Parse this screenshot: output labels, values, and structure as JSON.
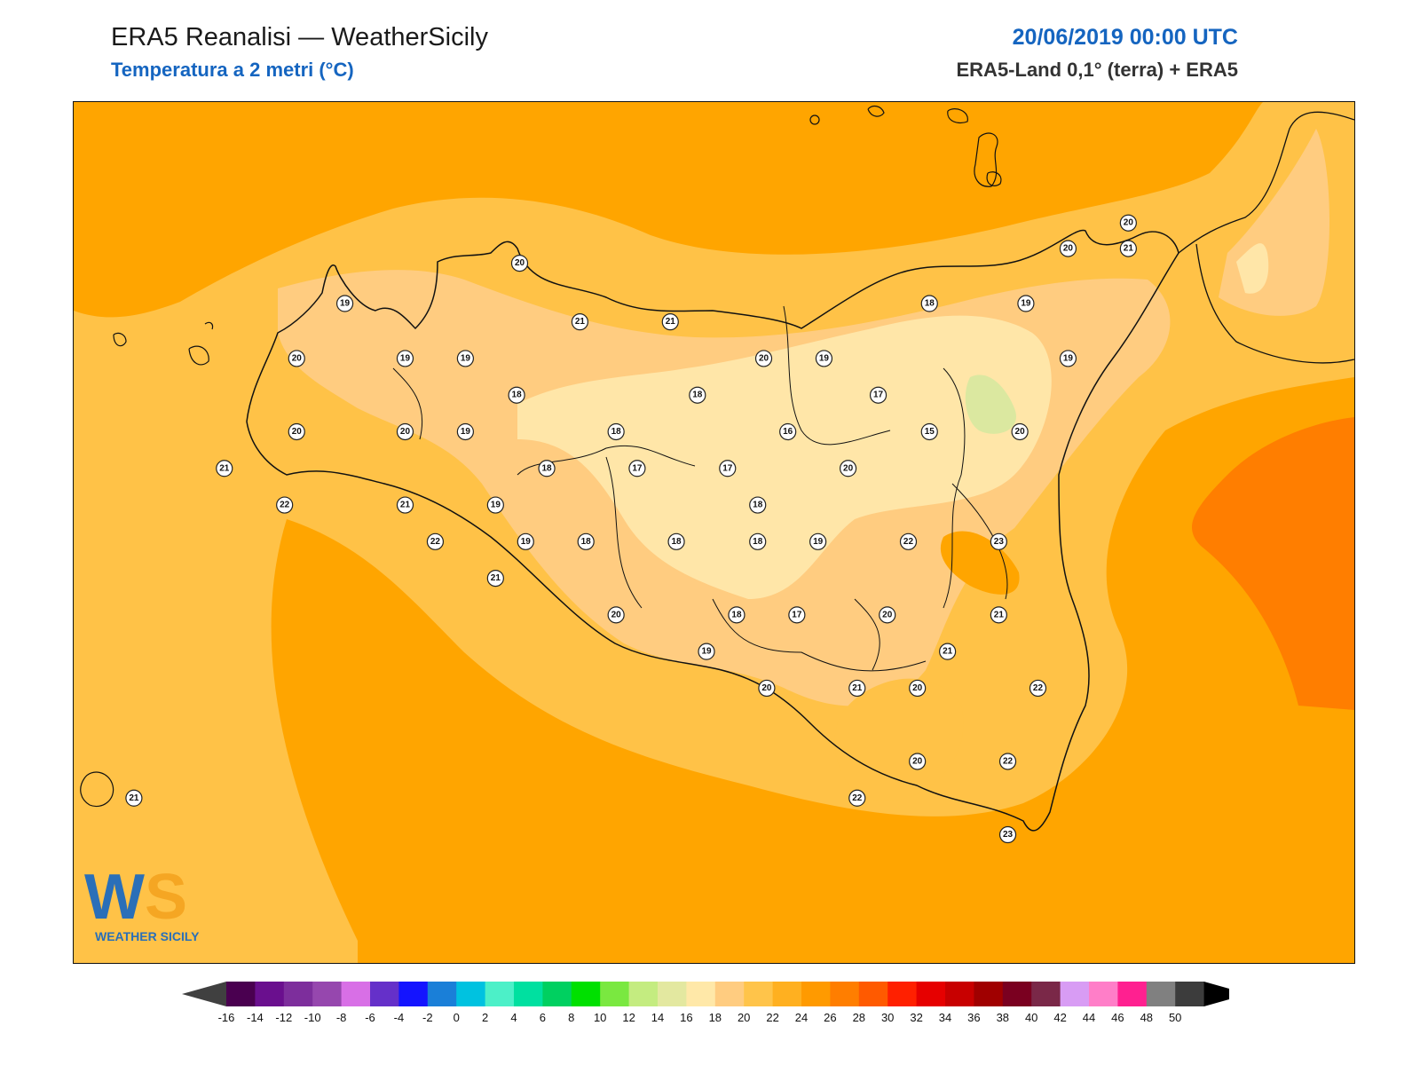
{
  "header": {
    "title": "ERA5 Reanalisi — WeatherSicily",
    "subtitle": "Temperatura a 2 metri (°C)",
    "datetime": "20/06/2019 00:00 UTC",
    "source": "ERA5-Land 0,1° (terra) + ERA5"
  },
  "logo": {
    "letters": "WS",
    "text": "WEATHER SICILY"
  },
  "colorbar": {
    "ticks": [
      -16,
      -14,
      -12,
      -10,
      -8,
      -6,
      -4,
      -2,
      0,
      2,
      4,
      6,
      8,
      10,
      12,
      14,
      16,
      18,
      20,
      22,
      24,
      26,
      28,
      30,
      32,
      34,
      36,
      38,
      40,
      42,
      44,
      46,
      48,
      50
    ],
    "colors": [
      "#4a0050",
      "#6a0f8e",
      "#7d2e9c",
      "#9647ae",
      "#d86fe6",
      "#6530c9",
      "#1414ff",
      "#1a7fd8",
      "#00c2e0",
      "#4cf0c8",
      "#00e0a0",
      "#00d060",
      "#00e000",
      "#7ae840",
      "#c4ec80",
      "#e3e8a0",
      "#ffe8a8",
      "#ffcc80",
      "#ffc44a",
      "#ffb020",
      "#ff9a00",
      "#ff7e00",
      "#ff5a00",
      "#ff2000",
      "#e60000",
      "#c80000",
      "#a00000",
      "#7a0020",
      "#7a2848",
      "#d89cf4",
      "#ff7ec8",
      "#ff2090",
      "#808080",
      "#3c3c3c"
    ],
    "under_color": "#404040",
    "over_color": "#000000"
  },
  "stations": [
    {
      "lon": 12.65,
      "lat": 38.1,
      "t": "19"
    },
    {
      "lon": 13.23,
      "lat": 38.21,
      "t": "20"
    },
    {
      "lon": 12.49,
      "lat": 37.95,
      "t": "20"
    },
    {
      "lon": 12.85,
      "lat": 37.95,
      "t": "19"
    },
    {
      "lon": 13.05,
      "lat": 37.95,
      "t": "19"
    },
    {
      "lon": 13.43,
      "lat": 38.05,
      "t": "21"
    },
    {
      "lon": 13.73,
      "lat": 38.05,
      "t": "21"
    },
    {
      "lon": 13.22,
      "lat": 37.85,
      "t": "18"
    },
    {
      "lon": 14.04,
      "lat": 37.95,
      "t": "20"
    },
    {
      "lon": 14.24,
      "lat": 37.95,
      "t": "19"
    },
    {
      "lon": 14.59,
      "lat": 38.1,
      "t": "18"
    },
    {
      "lon": 14.91,
      "lat": 38.1,
      "t": "19"
    },
    {
      "lon": 15.25,
      "lat": 38.25,
      "t": "21"
    },
    {
      "lon": 15.05,
      "lat": 38.25,
      "t": "20"
    },
    {
      "lon": 15.25,
      "lat": 38.32,
      "t": "20"
    },
    {
      "lon": 15.05,
      "lat": 37.95,
      "t": "19"
    },
    {
      "lon": 13.82,
      "lat": 37.85,
      "t": "18"
    },
    {
      "lon": 14.42,
      "lat": 37.85,
      "t": "17"
    },
    {
      "lon": 14.12,
      "lat": 37.75,
      "t": "16"
    },
    {
      "lon": 14.59,
      "lat": 37.75,
      "t": "15"
    },
    {
      "lon": 14.89,
      "lat": 37.75,
      "t": "20"
    },
    {
      "lon": 12.49,
      "lat": 37.75,
      "t": "20"
    },
    {
      "lon": 12.85,
      "lat": 37.75,
      "t": "20"
    },
    {
      "lon": 13.05,
      "lat": 37.75,
      "t": "19"
    },
    {
      "lon": 13.55,
      "lat": 37.75,
      "t": "18"
    },
    {
      "lon": 12.25,
      "lat": 37.65,
      "t": "21"
    },
    {
      "lon": 13.32,
      "lat": 37.65,
      "t": "18"
    },
    {
      "lon": 13.62,
      "lat": 37.65,
      "t": "17"
    },
    {
      "lon": 13.92,
      "lat": 37.65,
      "t": "17"
    },
    {
      "lon": 14.32,
      "lat": 37.65,
      "t": "20"
    },
    {
      "lon": 12.45,
      "lat": 37.55,
      "t": "22"
    },
    {
      "lon": 12.85,
      "lat": 37.55,
      "t": "21"
    },
    {
      "lon": 13.15,
      "lat": 37.55,
      "t": "19"
    },
    {
      "lon": 14.02,
      "lat": 37.55,
      "t": "18"
    },
    {
      "lon": 12.95,
      "lat": 37.45,
      "t": "22"
    },
    {
      "lon": 13.25,
      "lat": 37.45,
      "t": "19"
    },
    {
      "lon": 13.45,
      "lat": 37.45,
      "t": "18"
    },
    {
      "lon": 13.75,
      "lat": 37.45,
      "t": "18"
    },
    {
      "lon": 14.02,
      "lat": 37.45,
      "t": "18"
    },
    {
      "lon": 14.22,
      "lat": 37.45,
      "t": "19"
    },
    {
      "lon": 14.52,
      "lat": 37.45,
      "t": "22"
    },
    {
      "lon": 14.82,
      "lat": 37.45,
      "t": "23"
    },
    {
      "lon": 13.15,
      "lat": 37.35,
      "t": "21"
    },
    {
      "lon": 13.55,
      "lat": 37.25,
      "t": "20"
    },
    {
      "lon": 13.95,
      "lat": 37.25,
      "t": "18"
    },
    {
      "lon": 14.15,
      "lat": 37.25,
      "t": "17"
    },
    {
      "lon": 14.45,
      "lat": 37.25,
      "t": "20"
    },
    {
      "lon": 14.82,
      "lat": 37.25,
      "t": "21"
    },
    {
      "lon": 13.85,
      "lat": 37.15,
      "t": "19"
    },
    {
      "lon": 14.65,
      "lat": 37.15,
      "t": "21"
    },
    {
      "lon": 14.05,
      "lat": 37.05,
      "t": "20"
    },
    {
      "lon": 14.35,
      "lat": 37.05,
      "t": "21"
    },
    {
      "lon": 14.55,
      "lat": 37.05,
      "t": "20"
    },
    {
      "lon": 14.95,
      "lat": 37.05,
      "t": "22"
    },
    {
      "lon": 14.55,
      "lat": 36.85,
      "t": "20"
    },
    {
      "lon": 14.85,
      "lat": 36.85,
      "t": "22"
    },
    {
      "lon": 14.35,
      "lat": 36.75,
      "t": "22"
    },
    {
      "lon": 14.85,
      "lat": 36.65,
      "t": "23"
    },
    {
      "lon": 11.95,
      "lat": 36.75,
      "t": "21"
    }
  ]
}
